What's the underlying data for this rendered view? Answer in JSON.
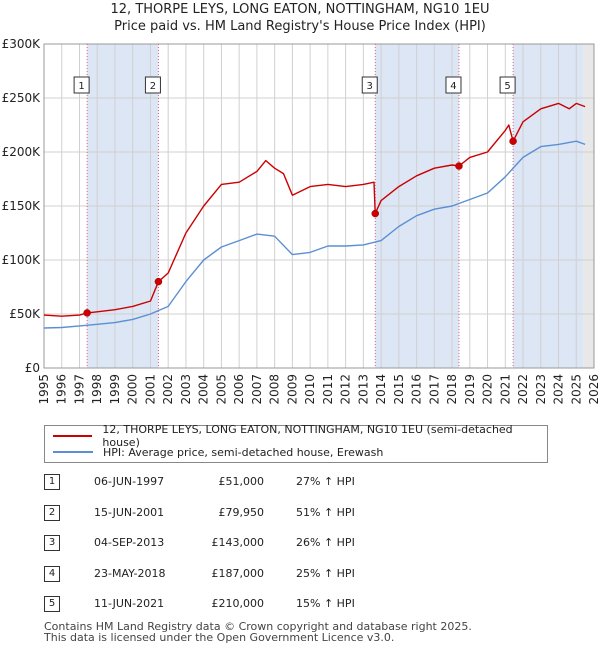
{
  "title_line1": "12, THORPE LEYS, LONG EATON, NOTTINGHAM, NG10 1EU",
  "title_line2": "Price paid vs. HM Land Registry's House Price Index (HPI)",
  "colors": {
    "property": "#cc0000",
    "hpi": "#5b8fd4",
    "sale_line": "#e06080",
    "shade": "#dce6f5",
    "future": "#e8e8e8"
  },
  "legend": {
    "property_label": "12, THORPE LEYS, LONG EATON, NOTTINGHAM, NG10 1EU (semi-detached house)",
    "hpi_label": "HPI: Average price, semi-detached house, Erewash"
  },
  "sales": [
    {
      "num": "1",
      "date": "06-JUN-1997",
      "price": "£51,000",
      "hpi": "27% ↑ HPI"
    },
    {
      "num": "2",
      "date": "15-JUN-2001",
      "price": "£79,950",
      "hpi": "51% ↑ HPI"
    },
    {
      "num": "3",
      "date": "04-SEP-2013",
      "price": "£143,000",
      "hpi": "26% ↑ HPI"
    },
    {
      "num": "4",
      "date": "23-MAY-2018",
      "price": "£187,000",
      "hpi": "25% ↑ HPI"
    },
    {
      "num": "5",
      "date": "11-JUN-2021",
      "price": "£210,000",
      "hpi": "15% ↑ HPI"
    }
  ],
  "footer_line1": "Contains HM Land Registry data © Crown copyright and database right 2025.",
  "footer_line2": "This data is licensed under the Open Government Licence v3.0.",
  "chart_data": {
    "type": "line",
    "x_range": [
      1995,
      2026
    ],
    "y_range": [
      0,
      300000
    ],
    "y_ticks": [
      0,
      50000,
      100000,
      150000,
      200000,
      250000,
      300000
    ],
    "y_tick_labels": [
      "£0",
      "£50K",
      "£100K",
      "£150K",
      "£200K",
      "£250K",
      "£300K"
    ],
    "x_ticks": [
      1995,
      1996,
      1997,
      1998,
      1999,
      2000,
      2001,
      2002,
      2003,
      2004,
      2005,
      2006,
      2007,
      2008,
      2009,
      2010,
      2011,
      2012,
      2013,
      2014,
      2015,
      2016,
      2017,
      2018,
      2019,
      2020,
      2021,
      2022,
      2023,
      2024,
      2025,
      2026
    ],
    "x_tick_labels": [
      "1995",
      "1996",
      "1997",
      "1998",
      "1999",
      "2000",
      "2001",
      "2002",
      "2003",
      "2004",
      "2005",
      "2006",
      "2007",
      "2008",
      "2009",
      "2010",
      "2011",
      "2012",
      "2013",
      "2014",
      "2015",
      "2016",
      "2017",
      "2018",
      "2019",
      "2020",
      "2021",
      "2022",
      "2023",
      "2024",
      "2025",
      "2026"
    ],
    "grid": true,
    "shaded_periods": [
      [
        1997.43,
        2001.45
      ],
      [
        2013.67,
        2018.39
      ],
      [
        2021.44,
        2025.4
      ]
    ],
    "future_from": 2025.4,
    "sales": [
      {
        "label": "1",
        "x": 1997.43,
        "y": 51000
      },
      {
        "label": "2",
        "x": 2001.45,
        "y": 79950
      },
      {
        "label": "3",
        "x": 2013.67,
        "y": 143000
      },
      {
        "label": "4",
        "x": 2018.39,
        "y": 187000
      },
      {
        "label": "5",
        "x": 2021.44,
        "y": 210000
      }
    ],
    "series": [
      {
        "name": "12, THORPE LEYS, LONG EATON, NOTTINGHAM, NG10 1EU (semi-detached house)",
        "x": [
          1995,
          1996,
          1997,
          1997.43,
          1998,
          1999,
          2000,
          2001,
          2001.45,
          2002,
          2003,
          2004,
          2005,
          2006,
          2007,
          2007.5,
          2008,
          2008.5,
          2009,
          2010,
          2011,
          2012,
          2013,
          2013.6,
          2013.67,
          2014,
          2015,
          2016,
          2017,
          2018,
          2018.39,
          2019,
          2020,
          2021,
          2021.2,
          2021.44,
          2022,
          2023,
          2024,
          2024.6,
          2025,
          2025.5
        ],
        "y": [
          49000,
          48000,
          49000,
          51000,
          52000,
          54000,
          57000,
          62000,
          79950,
          88000,
          125000,
          150000,
          170000,
          172000,
          182000,
          192000,
          185000,
          180000,
          160000,
          168000,
          170000,
          168000,
          170000,
          172000,
          143000,
          155000,
          168000,
          178000,
          185000,
          188000,
          187000,
          195000,
          200000,
          220000,
          225000,
          210000,
          228000,
          240000,
          245000,
          240000,
          245000,
          242000
        ]
      },
      {
        "name": "HPI: Average price, semi-detached house, Erewash",
        "x": [
          1995,
          1996,
          1997,
          1998,
          1999,
          2000,
          2001,
          2002,
          2003,
          2004,
          2005,
          2006,
          2007,
          2008,
          2009,
          2010,
          2011,
          2012,
          2013,
          2014,
          2015,
          2016,
          2017,
          2018,
          2019,
          2020,
          2021,
          2022,
          2023,
          2024,
          2025,
          2025.5
        ],
        "y": [
          37000,
          37500,
          39000,
          40500,
          42000,
          45000,
          50000,
          57000,
          80000,
          100000,
          112000,
          118000,
          124000,
          122000,
          105000,
          107000,
          113000,
          113000,
          114000,
          118000,
          131000,
          141000,
          147000,
          150000,
          156000,
          162000,
          177000,
          195000,
          205000,
          207000,
          210000,
          207000
        ]
      }
    ]
  }
}
